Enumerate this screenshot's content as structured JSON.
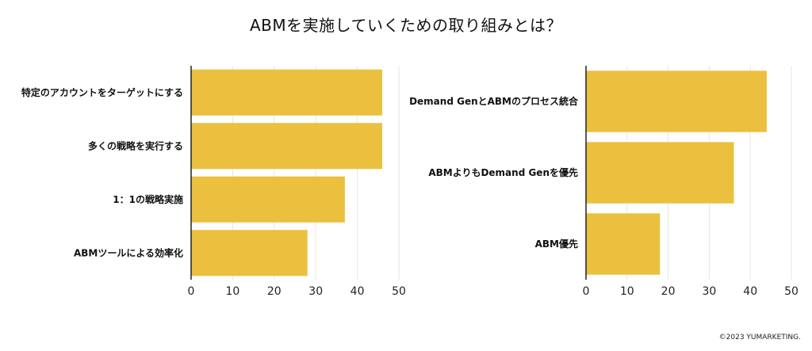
{
  "title": "ABMを実施していくための取り組みとは？",
  "copyright": "©2023 YUMARKETING.",
  "colors": {
    "bar": "#EBC03F",
    "grid": "#E6E6E6",
    "axis": "#222222"
  },
  "chart_data": [
    {
      "type": "bar",
      "orientation": "horizontal",
      "categories": [
        "特定のアカウントをターゲットにする",
        "多くの戦略を実行する",
        "1：1の戦略実施",
        "ABMツールによる効率化"
      ],
      "values": [
        46,
        46,
        37,
        28
      ],
      "xlim": [
        0,
        50
      ],
      "xticks": [
        0,
        10,
        20,
        30,
        40,
        50
      ],
      "grid": true
    },
    {
      "type": "bar",
      "orientation": "horizontal",
      "categories": [
        "Demand GenとABMのプロセス統合",
        "ABMよりもDemand Genを優先",
        "ABM優先"
      ],
      "values": [
        44,
        36,
        18
      ],
      "xlim": [
        0,
        50
      ],
      "xticks": [
        0,
        10,
        20,
        30,
        40,
        50
      ],
      "grid": true
    }
  ]
}
